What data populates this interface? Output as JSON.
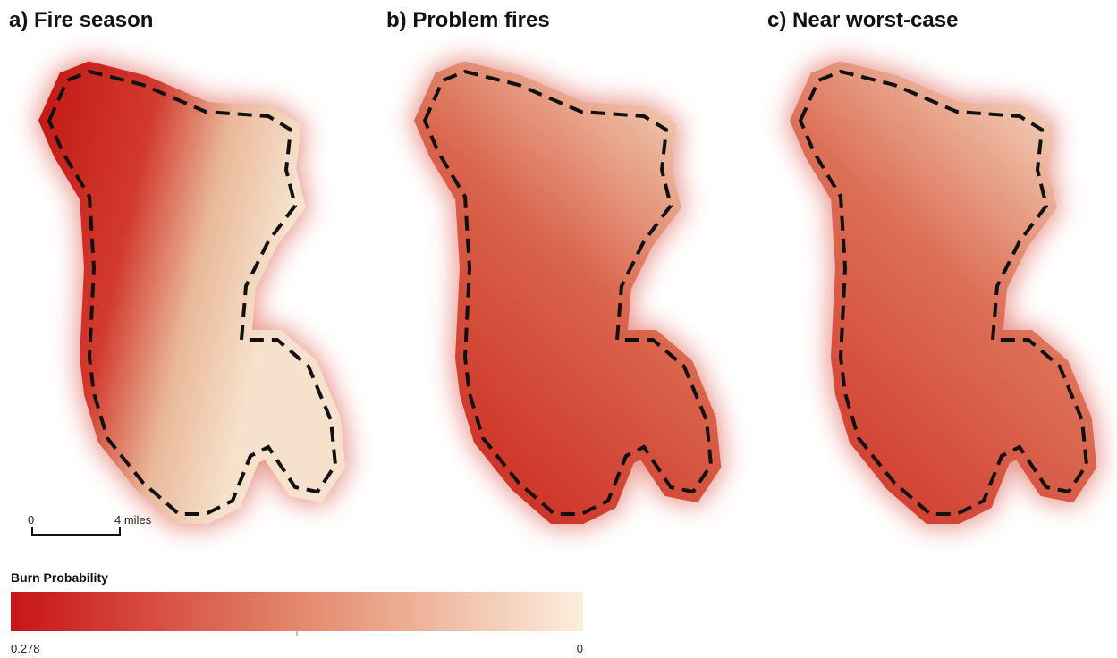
{
  "panels": [
    {
      "title": "a) Fire season"
    },
    {
      "title": "b) Problem fires"
    },
    {
      "title": "c) Near worst-case"
    }
  ],
  "scale_bar": {
    "start": "0",
    "end": "4 miles"
  },
  "legend": {
    "title": "Burn Probability",
    "max": 0.278,
    "min": 0
  }
}
